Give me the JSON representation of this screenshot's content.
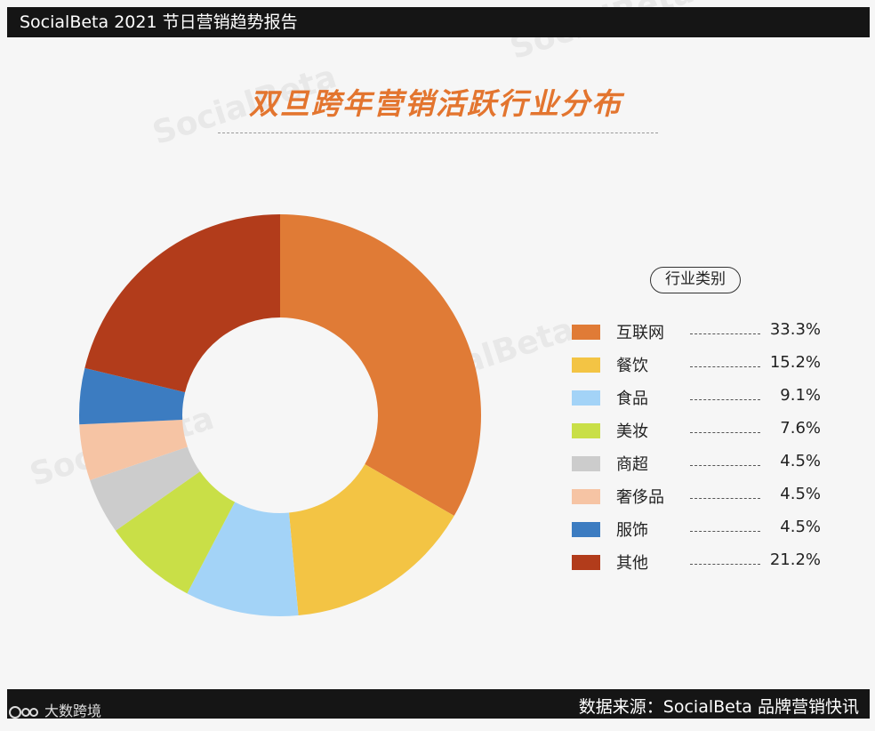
{
  "header": {
    "title": "SocialBeta 2021 节日营销趋势报告"
  },
  "watermark": "SocialBeta",
  "footer": {
    "source": "数据来源：SocialBeta 品牌营销快讯",
    "brand": "大数跨境"
  },
  "legend": {
    "heading": "行业类别"
  },
  "chart_data": {
    "type": "pie",
    "title": "双旦跨年营销活跃行业分布",
    "donut": true,
    "legend_position": "right",
    "slices": [
      {
        "label": "互联网",
        "value": 33.3,
        "display": "33.3%",
        "color": "#e07b36"
      },
      {
        "label": "餐饮",
        "value": 15.2,
        "display": "15.2%",
        "color": "#f3c444"
      },
      {
        "label": "食品",
        "value": 9.1,
        "display": "9.1%",
        "color": "#a3d3f7"
      },
      {
        "label": "美妆",
        "value": 7.6,
        "display": "7.6%",
        "color": "#c9df47"
      },
      {
        "label": "商超",
        "value": 4.5,
        "display": "4.5%",
        "color": "#cccccc"
      },
      {
        "label": "奢侈品",
        "value": 4.5,
        "display": "4.5%",
        "color": "#f6c4a4"
      },
      {
        "label": "服饰",
        "value": 4.5,
        "display": "4.5%",
        "color": "#3c7cc1"
      },
      {
        "label": "其他",
        "value": 21.2,
        "display": "21.2%",
        "color": "#b23c1b"
      }
    ]
  }
}
